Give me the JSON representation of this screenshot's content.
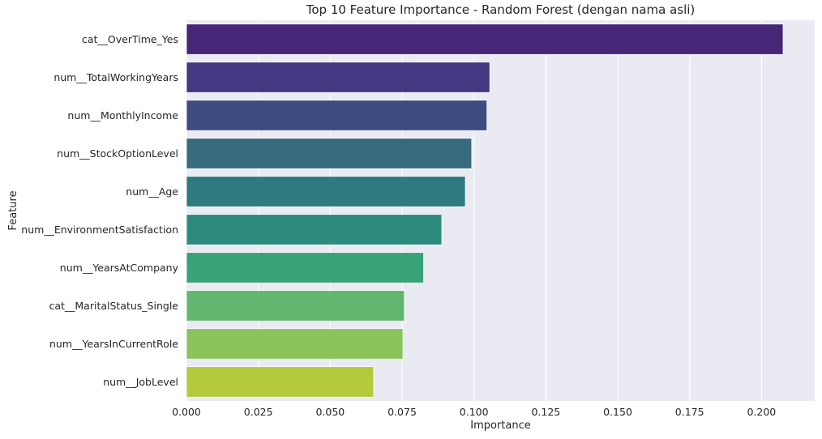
{
  "chart_data": {
    "type": "bar",
    "orientation": "horizontal",
    "title": "Top 10 Feature Importance - Random Forest (dengan nama asli)",
    "xlabel": "Importance",
    "ylabel": "Feature",
    "xlim": [
      0,
      0.2185
    ],
    "xticks": [
      "0.000",
      "0.025",
      "0.050",
      "0.075",
      "0.100",
      "0.125",
      "0.150",
      "0.175",
      "0.200"
    ],
    "grid": true,
    "categories": [
      "cat__OverTime_Yes",
      "num__TotalWorkingYears",
      "num__MonthlyIncome",
      "num__StockOptionLevel",
      "num__Age",
      "num__EnvironmentSatisfaction",
      "num__YearsAtCompany",
      "cat__MaritalStatus_Single",
      "num__YearsInCurrentRole",
      "num__JobLevel"
    ],
    "values": [
      0.2075,
      0.1055,
      0.1045,
      0.0992,
      0.097,
      0.0888,
      0.0825,
      0.0758,
      0.0753,
      0.0651
    ],
    "colors": [
      "#482677",
      "#453781",
      "#3f4c82",
      "#386a7e",
      "#2e7b7f",
      "#2d8b7e",
      "#39a276",
      "#62b66e",
      "#8bc35c",
      "#b4c93c"
    ],
    "background_color": "#eaeaf2"
  }
}
